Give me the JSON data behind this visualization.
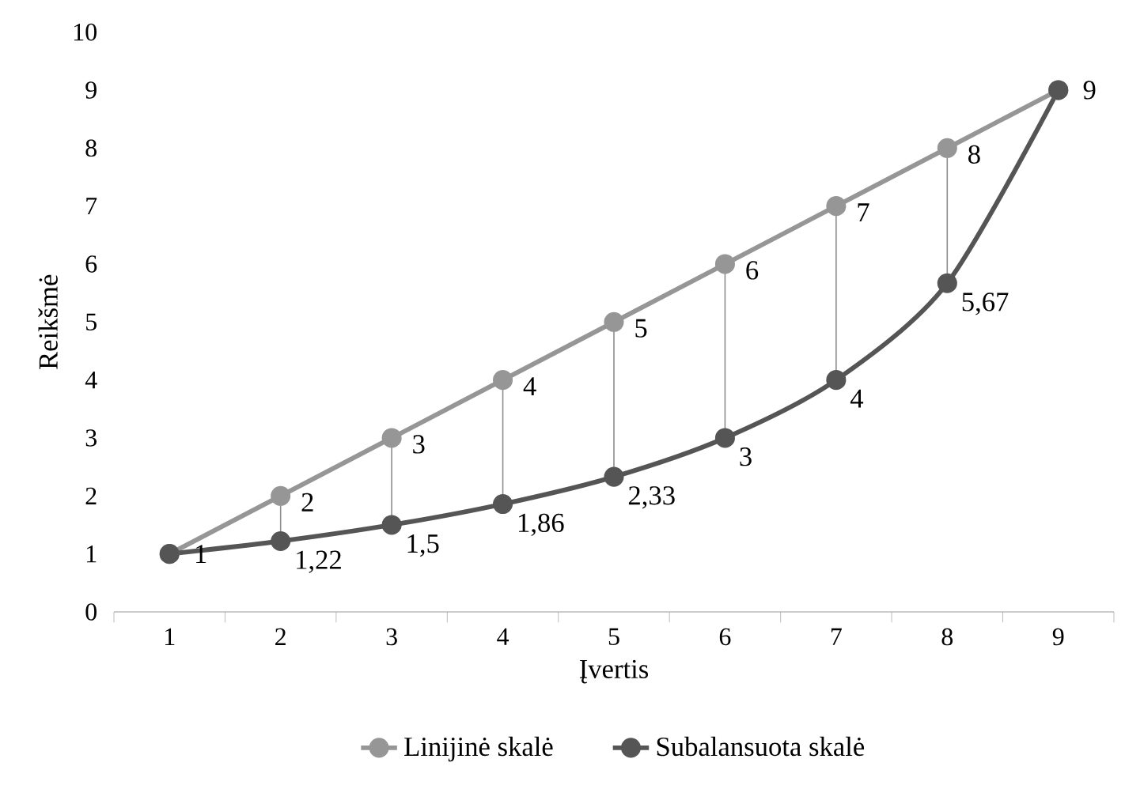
{
  "chart_data": {
    "type": "line",
    "xlabel": "Įvertis",
    "ylabel": "Reikšmė",
    "categories": [
      "1",
      "2",
      "3",
      "4",
      "5",
      "6",
      "7",
      "8",
      "9"
    ],
    "series": [
      {
        "name": "Linijinė skalė",
        "color": "#969696",
        "values": [
          1,
          2,
          3,
          4,
          5,
          6,
          7,
          8,
          9
        ],
        "value_labels": [
          null,
          "2",
          "3",
          "4",
          "5",
          "6",
          "7",
          "8",
          null
        ]
      },
      {
        "name": "Subalansuota skalė",
        "color": "#555555",
        "values": [
          1,
          1.22,
          1.5,
          1.86,
          2.33,
          3,
          4,
          5.67,
          9
        ],
        "value_labels": [
          "1",
          "1,22",
          "1,5",
          "1,86",
          "2,33",
          "3",
          "4",
          "5,67",
          "9"
        ]
      }
    ],
    "ylim": [
      0,
      10
    ],
    "yticks": [
      0,
      1,
      2,
      3,
      4,
      5,
      6,
      7,
      8,
      9,
      10
    ],
    "grid": false,
    "legend": "bottom",
    "marker": "circle",
    "line_style": "solid"
  }
}
